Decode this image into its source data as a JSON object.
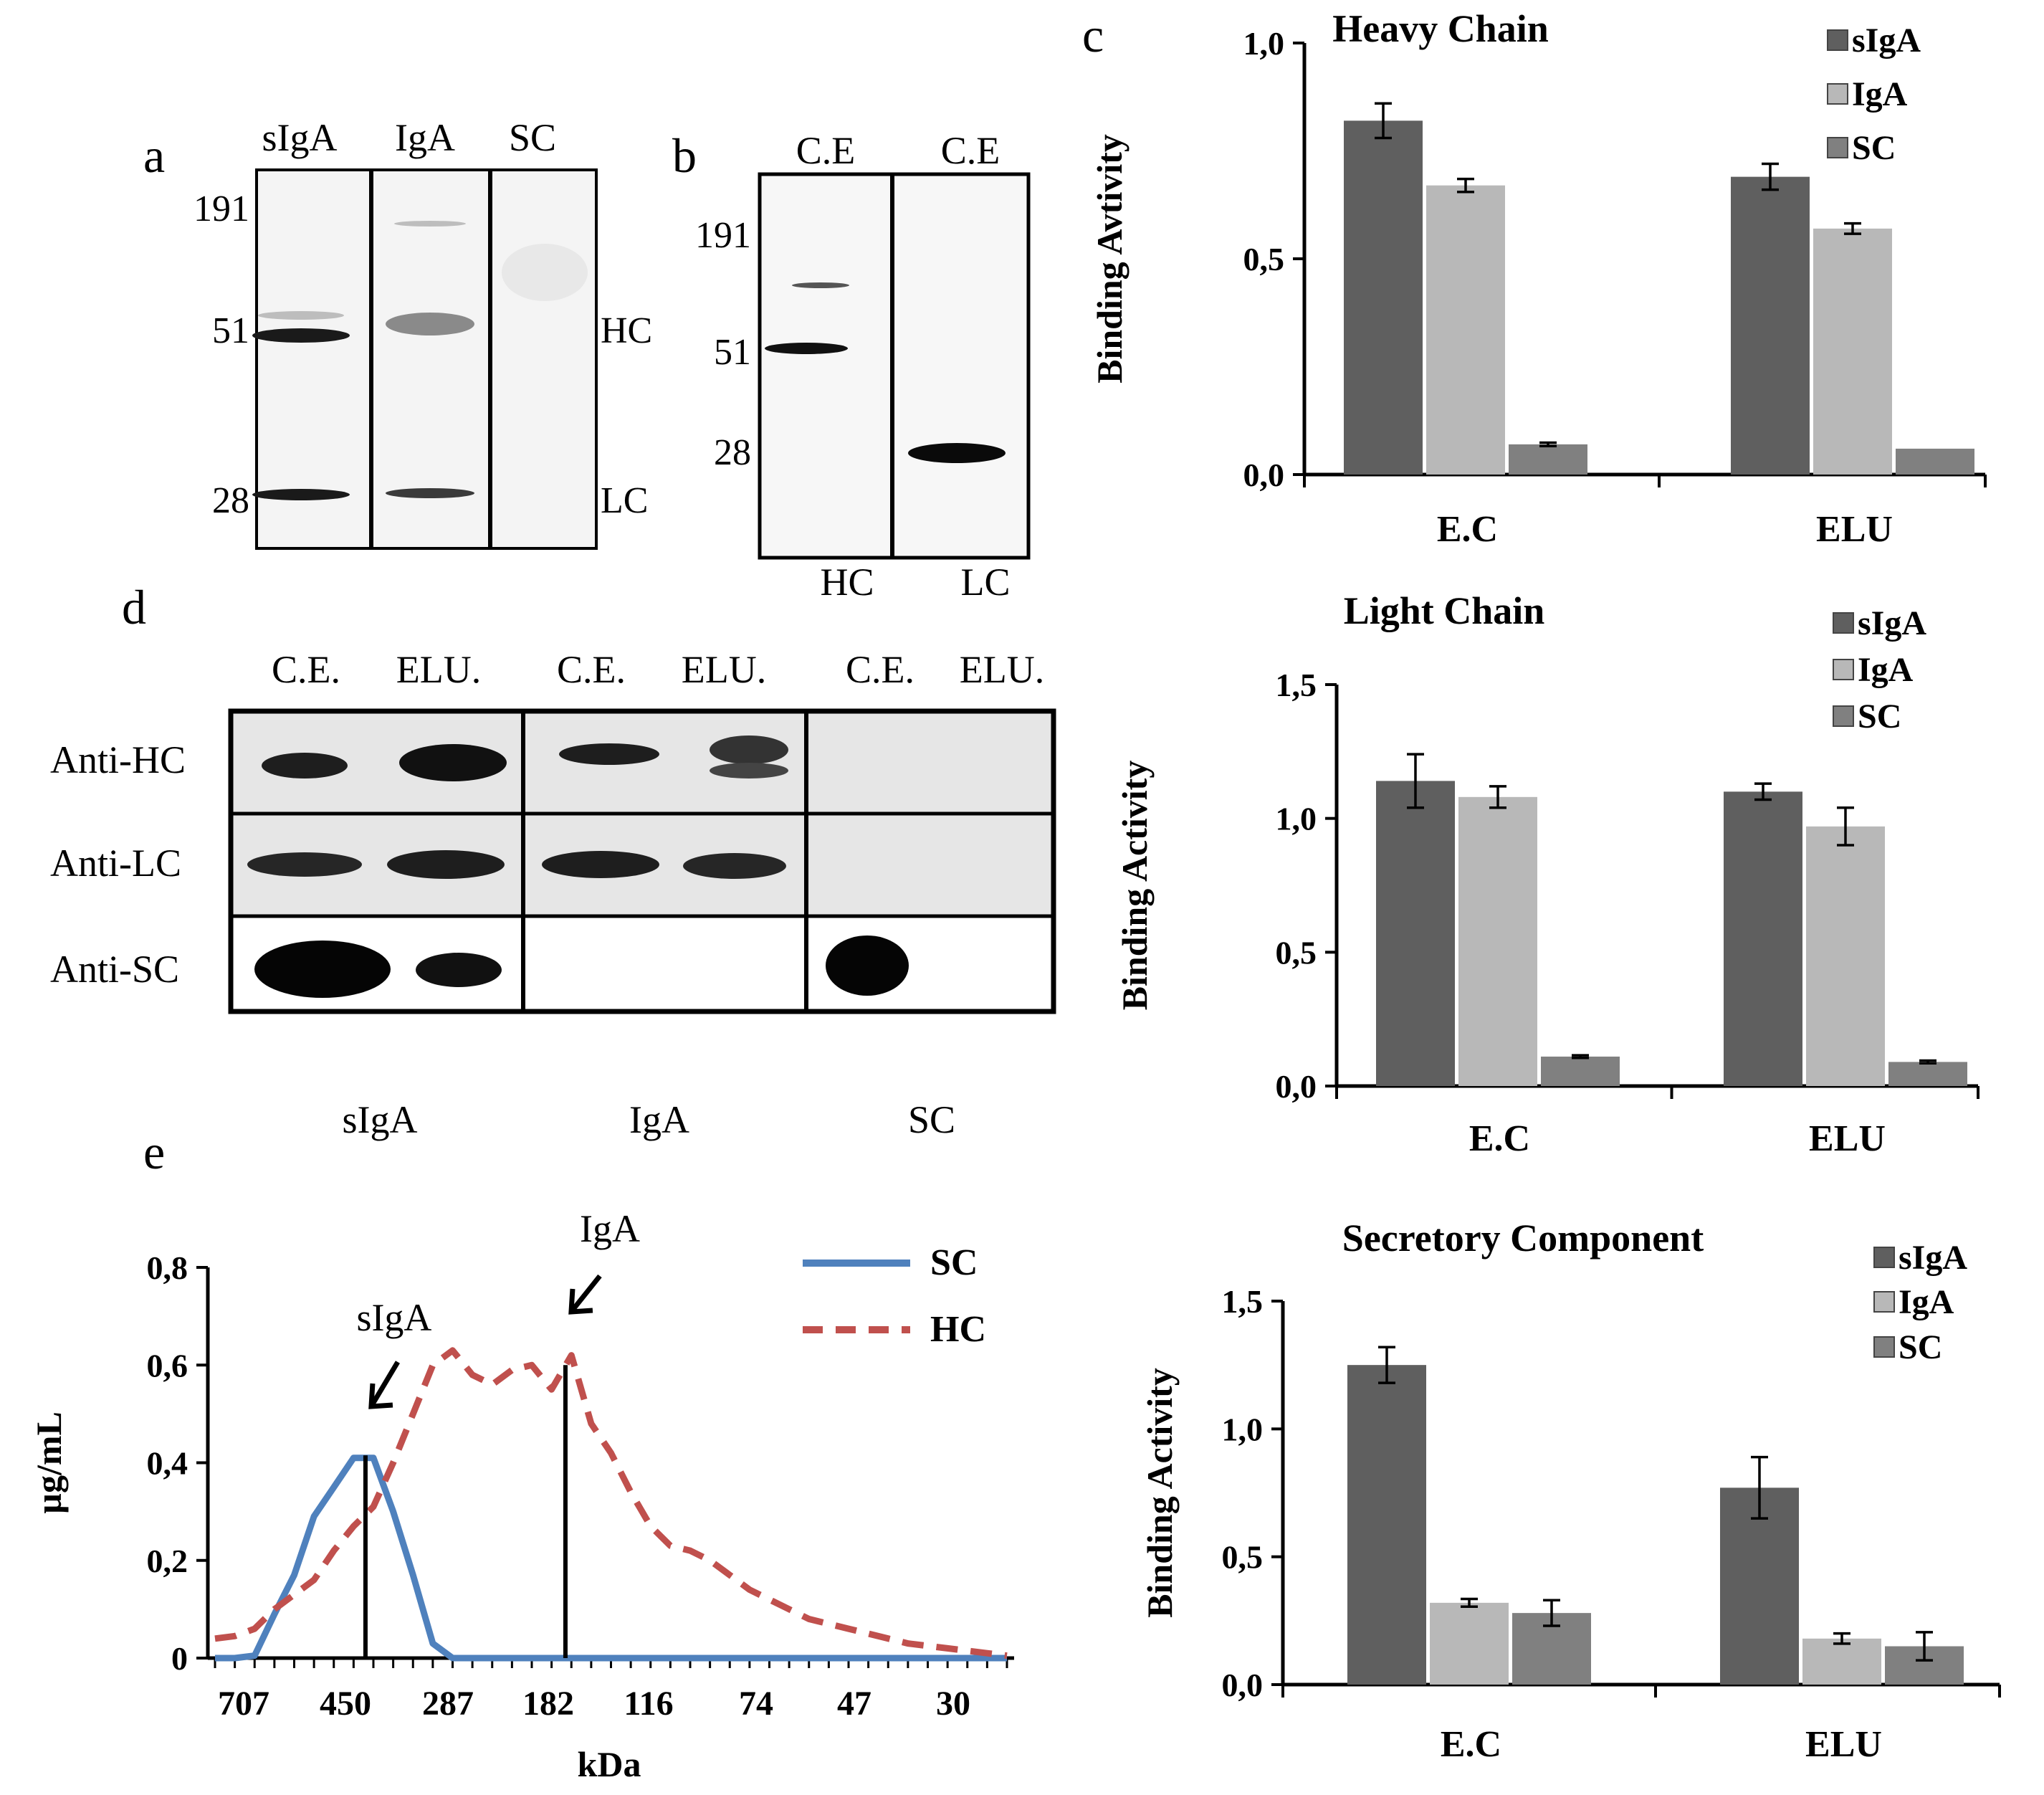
{
  "panel_letters": {
    "a": "a",
    "b": "b",
    "c": "c",
    "d": "d",
    "e": "e"
  },
  "blot_a": {
    "lanes": [
      "sIgA",
      "IgA",
      "SC"
    ],
    "markers": [
      "191",
      "51",
      "28"
    ],
    "right_labels": [
      "HC",
      "LC"
    ]
  },
  "blot_b": {
    "lanes": [
      "C.E",
      "C.E"
    ],
    "markers": [
      "191",
      "51",
      "28"
    ],
    "bottom_labels": [
      "HC",
      "LC"
    ]
  },
  "blot_d": {
    "columns": [
      "C.E.",
      "ELU.",
      "C.E.",
      "ELU.",
      "C.E.",
      "ELU."
    ],
    "rows": [
      "Anti-HC",
      "Anti-LC",
      "Anti-SC"
    ],
    "groups": [
      "sIgA",
      "IgA",
      "SC"
    ]
  },
  "colors": {
    "sIgA": "#5f5f5f",
    "IgA": "#b8b8b8",
    "SC": "#808080",
    "line_SC": "#4f81bd",
    "line_HC": "#c0504d"
  },
  "chart_data": [
    {
      "type": "bar",
      "title": "Heavy Chain",
      "ylabel": "Binding Avtivity",
      "categories": [
        "E.C",
        "ELU"
      ],
      "ylim": [
        0,
        1.0
      ],
      "yticks": [
        "0,0",
        "0,5",
        "1,0"
      ],
      "series": [
        {
          "name": "sIgA",
          "values": [
            0.82,
            0.69
          ],
          "errors": [
            0.04,
            0.03
          ]
        },
        {
          "name": "IgA",
          "values": [
            0.67,
            0.57
          ],
          "errors": [
            0.015,
            0.012
          ]
        },
        {
          "name": "SC",
          "values": [
            0.07,
            0.06
          ],
          "errors": [
            0.004,
            0.0
          ]
        }
      ]
    },
    {
      "type": "bar",
      "title": "Light Chain",
      "ylabel": "Binding Activity",
      "categories": [
        "E.C",
        "ELU"
      ],
      "ylim": [
        0,
        1.5
      ],
      "yticks": [
        "0,0",
        "0,5",
        "1,0",
        "1,5"
      ],
      "series": [
        {
          "name": "sIgA",
          "values": [
            1.14,
            1.1
          ],
          "errors": [
            0.1,
            0.03
          ]
        },
        {
          "name": "IgA",
          "values": [
            1.08,
            0.97
          ],
          "errors": [
            0.04,
            0.07
          ]
        },
        {
          "name": "SC",
          "values": [
            0.11,
            0.09
          ],
          "errors": [
            0.005,
            0.005
          ]
        }
      ]
    },
    {
      "type": "bar",
      "title": "Secretory Component",
      "ylabel": "Binding Activity",
      "categories": [
        "E.C",
        "ELU"
      ],
      "ylim": [
        0,
        1.5
      ],
      "yticks": [
        "0,0",
        "0,5",
        "1,0",
        "1,5"
      ],
      "series": [
        {
          "name": "sIgA",
          "values": [
            1.25,
            0.77
          ],
          "errors": [
            0.07,
            0.12
          ]
        },
        {
          "name": "IgA",
          "values": [
            0.32,
            0.18
          ],
          "errors": [
            0.015,
            0.02
          ]
        },
        {
          "name": "SC",
          "values": [
            0.28,
            0.15
          ],
          "errors": [
            0.05,
            0.055
          ]
        }
      ]
    },
    {
      "type": "line",
      "xlabel": "kDa",
      "ylabel": "µg/mL",
      "ylim": [
        0,
        0.8
      ],
      "yticks": [
        "0",
        "0,2",
        "0,4",
        "0,6",
        "0,8"
      ],
      "x_tick_labels": [
        "707",
        "450",
        "287",
        "182",
        "116",
        "74",
        "47",
        "30"
      ],
      "fraction_index": [
        0,
        1,
        2,
        3,
        4,
        5,
        6,
        7,
        8,
        9,
        10,
        11,
        12,
        13,
        14,
        15,
        16,
        17,
        18,
        19,
        20,
        21,
        22,
        23,
        24,
        25,
        26,
        27,
        28,
        29,
        30,
        31,
        32,
        33,
        34,
        35,
        36,
        37,
        38,
        39,
        40
      ],
      "series": [
        {
          "name": "SC",
          "style": "solid",
          "values": [
            0,
            0,
            0.005,
            0.09,
            0.17,
            0.29,
            0.35,
            0.41,
            0.41,
            0.3,
            0.17,
            0.03,
            0,
            0,
            0,
            0,
            0,
            0,
            0,
            0,
            0,
            0,
            0,
            0,
            0,
            0,
            0,
            0,
            0,
            0,
            0,
            0,
            0,
            0,
            0,
            0,
            0,
            0,
            0,
            0,
            0
          ]
        },
        {
          "name": "HC",
          "style": "dashed",
          "values": [
            0.04,
            0.045,
            0.06,
            0.1,
            0.13,
            0.16,
            0.22,
            0.27,
            0.31,
            0.4,
            0.5,
            0.6,
            0.63,
            0.58,
            0.56,
            0.59,
            0.6,
            0.55,
            0.62,
            0.48,
            0.42,
            0.34,
            0.27,
            0.23,
            0.22,
            0.2,
            0.17,
            0.14,
            0.12,
            0.1,
            0.08,
            0.07,
            0.06,
            0.05,
            0.04,
            0.03,
            0.025,
            0.02,
            0.015,
            0.01,
            0.005
          ]
        }
      ],
      "markers": [
        {
          "label": "sIgA",
          "x": 7.6
        },
        {
          "label": "IgA",
          "x": 17.7
        }
      ]
    }
  ]
}
